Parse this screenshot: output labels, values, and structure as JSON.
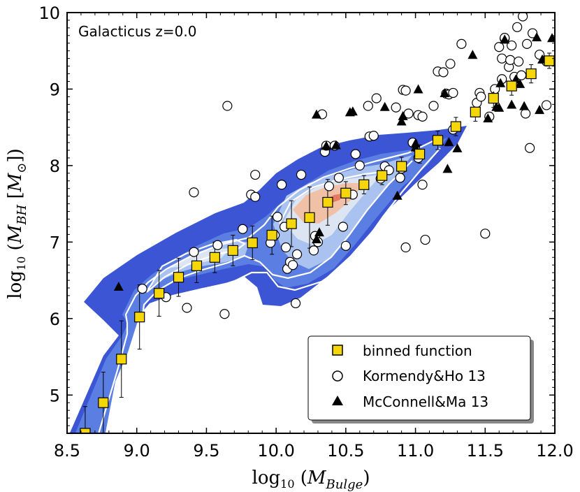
{
  "chart_data": {
    "type": "scatter",
    "title": "",
    "annotation": "Galacticus z=0.0",
    "xlabel": {
      "prefix": "log",
      "base": "10",
      "open": " (",
      "var": "M",
      "sub": "Bulge",
      "close": ")"
    },
    "ylabel": {
      "prefix": "log",
      "base": "10",
      "open": " (",
      "var": "M",
      "sub": "BH",
      "mid": " [",
      "unit": "M",
      "unit_sub": "⊙",
      "close": "])"
    },
    "xlim": [
      8.5,
      12.0
    ],
    "ylim": [
      4.5,
      10.0
    ],
    "x_ticks": [
      8.5,
      9.0,
      9.5,
      10.0,
      10.5,
      11.0,
      11.5,
      12.0
    ],
    "x_tick_labels": [
      "8.5",
      "9.0",
      "9.5",
      "10.0",
      "10.5",
      "11.0",
      "11.5",
      "12.0"
    ],
    "y_ticks": [
      5,
      6,
      7,
      8,
      9,
      10
    ],
    "y_tick_labels": [
      "5",
      "6",
      "7",
      "8",
      "9",
      "10"
    ],
    "colors": {
      "binned_fill": "#f5d60a",
      "contour_outer": "#3b55d4",
      "contour_mid": "#5b7ee2",
      "contour_light": "#a9c2f0",
      "contour_pale": "#dde5f3",
      "contour_warm": "#f1c1a7",
      "contour_hot": "#e37b62"
    },
    "legend": {
      "position": "lower-right",
      "entries": [
        {
          "label": "binned function",
          "marker": "square"
        },
        {
          "label": "Kormendy&Ho 13",
          "marker": "circle"
        },
        {
          "label": "McConnell&Ma 13",
          "marker": "triangle"
        }
      ]
    },
    "series": [
      {
        "name": "binned function",
        "marker": "square",
        "points": [
          {
            "x": 8.63,
            "y": 4.5,
            "err": 0.35
          },
          {
            "x": 8.76,
            "y": 4.9,
            "err": 0.4
          },
          {
            "x": 8.89,
            "y": 5.47,
            "err": 0.5
          },
          {
            "x": 9.02,
            "y": 6.02,
            "err": 0.42
          },
          {
            "x": 9.16,
            "y": 6.33,
            "err": 0.3
          },
          {
            "x": 9.3,
            "y": 6.54,
            "err": 0.25
          },
          {
            "x": 9.43,
            "y": 6.69,
            "err": 0.22
          },
          {
            "x": 9.56,
            "y": 6.8,
            "err": 0.2
          },
          {
            "x": 9.69,
            "y": 6.89,
            "err": 0.2
          },
          {
            "x": 9.83,
            "y": 6.99,
            "err": 0.22
          },
          {
            "x": 9.97,
            "y": 7.09,
            "err": 0.25
          },
          {
            "x": 10.11,
            "y": 7.24,
            "err": 0.3
          },
          {
            "x": 10.24,
            "y": 7.32,
            "err": 0.4
          },
          {
            "x": 10.37,
            "y": 7.52,
            "err": 0.3
          },
          {
            "x": 10.5,
            "y": 7.64,
            "err": 0.15
          },
          {
            "x": 10.63,
            "y": 7.75,
            "err": 0.12
          },
          {
            "x": 10.76,
            "y": 7.87,
            "err": 0.12
          },
          {
            "x": 10.9,
            "y": 7.99,
            "err": 0.12
          },
          {
            "x": 11.03,
            "y": 8.15,
            "err": 0.12
          },
          {
            "x": 11.16,
            "y": 8.33,
            "err": 0.12
          },
          {
            "x": 11.29,
            "y": 8.51,
            "err": 0.12
          },
          {
            "x": 11.43,
            "y": 8.7,
            "err": 0.12
          },
          {
            "x": 11.56,
            "y": 8.88,
            "err": 0.12
          },
          {
            "x": 11.69,
            "y": 9.04,
            "err": 0.12
          },
          {
            "x": 11.83,
            "y": 9.2,
            "err": 0.12
          },
          {
            "x": 11.96,
            "y": 9.37,
            "err": 0.1
          }
        ]
      },
      {
        "name": "Kormendy&Ho 13",
        "marker": "circle",
        "points": [
          [
            9.04,
            6.39
          ],
          [
            9.21,
            6.28
          ],
          [
            9.36,
            6.14
          ],
          [
            9.41,
            6.87
          ],
          [
            9.41,
            7.65
          ],
          [
            9.58,
            6.96
          ],
          [
            9.63,
            6.06
          ],
          [
            9.65,
            8.78
          ],
          [
            9.76,
            7.17
          ],
          [
            9.82,
            7.62
          ],
          [
            9.85,
            7.88
          ],
          [
            9.85,
            7.59
          ],
          [
            9.96,
            6.99
          ],
          [
            9.99,
            7.09
          ],
          [
            10.01,
            7.33
          ],
          [
            10.04,
            7.75
          ],
          [
            10.06,
            7.2
          ],
          [
            10.07,
            6.93
          ],
          [
            10.08,
            6.65
          ],
          [
            10.1,
            6.74
          ],
          [
            10.12,
            6.7
          ],
          [
            10.14,
            6.2
          ],
          [
            10.15,
            6.84
          ],
          [
            10.18,
            7.88
          ],
          [
            10.27,
            6.89
          ],
          [
            10.28,
            7.08
          ],
          [
            10.3,
            7.0
          ],
          [
            10.33,
            8.67
          ],
          [
            10.35,
            8.18
          ],
          [
            10.36,
            8.26
          ],
          [
            10.38,
            7.73
          ],
          [
            10.42,
            8.26
          ],
          [
            10.45,
            7.84
          ],
          [
            10.48,
            7.2
          ],
          [
            10.5,
            6.95
          ],
          [
            10.55,
            7.62
          ],
          [
            10.57,
            8.15
          ],
          [
            10.6,
            8.0
          ],
          [
            10.66,
            8.78
          ],
          [
            10.67,
            8.38
          ],
          [
            10.7,
            8.39
          ],
          [
            10.72,
            8.88
          ],
          [
            10.75,
            7.83
          ],
          [
            10.78,
            7.99
          ],
          [
            10.81,
            7.94
          ],
          [
            10.86,
            8.76
          ],
          [
            10.89,
            7.84
          ],
          [
            10.9,
            7.96
          ],
          [
            10.91,
            8.99
          ],
          [
            10.93,
            6.93
          ],
          [
            10.93,
            8.98
          ],
          [
            10.95,
            8.68
          ],
          [
            10.98,
            8.3
          ],
          [
            11.02,
            8.1
          ],
          [
            11.02,
            8.66
          ],
          [
            11.05,
            8.64
          ],
          [
            11.05,
            7.75
          ],
          [
            11.07,
            7.03
          ],
          [
            11.13,
            8.78
          ],
          [
            11.16,
            9.23
          ],
          [
            11.2,
            9.22
          ],
          [
            11.22,
            8.94
          ],
          [
            11.24,
            8.93
          ],
          [
            11.25,
            9.33
          ],
          [
            11.27,
            8.95
          ],
          [
            11.27,
            8.47
          ],
          [
            11.33,
            9.59
          ],
          [
            11.44,
            8.82
          ],
          [
            11.46,
            8.95
          ],
          [
            11.47,
            8.9
          ],
          [
            11.5,
            7.11
          ],
          [
            11.53,
            8.64
          ],
          [
            11.57,
            9.0
          ],
          [
            11.6,
            9.55
          ],
          [
            11.62,
            9.4
          ],
          [
            11.62,
            9.13
          ],
          [
            11.64,
            9.66
          ],
          [
            11.64,
            9.67
          ],
          [
            11.67,
            9.29
          ],
          [
            11.68,
            9.38
          ],
          [
            11.69,
            9.57
          ],
          [
            11.71,
            9.16
          ],
          [
            11.73,
            9.81
          ],
          [
            11.74,
            9.36
          ],
          [
            11.76,
            9.18
          ],
          [
            11.77,
            9.95
          ],
          [
            11.79,
            8.68
          ],
          [
            11.8,
            9.59
          ],
          [
            11.82,
            8.23
          ],
          [
            11.84,
            9.73
          ],
          [
            11.89,
            9.45
          ],
          [
            11.94,
            9.36
          ],
          [
            11.94,
            8.79
          ]
        ]
      },
      {
        "name": "McConnell&Ma 13",
        "marker": "triangle",
        "points": [
          [
            8.87,
            6.41
          ],
          [
            10.29,
            7.03
          ],
          [
            10.31,
            7.12
          ],
          [
            10.29,
            8.66
          ],
          [
            10.36,
            8.25
          ],
          [
            10.43,
            8.26
          ],
          [
            10.53,
            8.69
          ],
          [
            10.55,
            8.7
          ],
          [
            10.78,
            8.76
          ],
          [
            10.87,
            7.6
          ],
          [
            10.9,
            8.57
          ],
          [
            10.91,
            8.64
          ],
          [
            11.0,
            8.23
          ],
          [
            11.0,
            8.28
          ],
          [
            11.02,
            8.99
          ],
          [
            11.17,
            8.31
          ],
          [
            11.21,
            8.94
          ],
          [
            11.23,
            7.95
          ],
          [
            11.24,
            8.3
          ],
          [
            11.3,
            8.22
          ],
          [
            11.41,
            9.44
          ],
          [
            11.52,
            8.61
          ],
          [
            11.56,
            8.9
          ],
          [
            11.58,
            8.76
          ],
          [
            11.6,
            8.75
          ],
          [
            11.61,
            9.07
          ],
          [
            11.64,
            9.64
          ],
          [
            11.69,
            8.79
          ],
          [
            11.72,
            9.12
          ],
          [
            11.75,
            9.06
          ],
          [
            11.78,
            8.77
          ],
          [
            11.87,
            9.67
          ],
          [
            11.89,
            8.72
          ],
          [
            11.98,
            9.66
          ],
          [
            11.91,
            9.38
          ]
        ]
      }
    ]
  }
}
